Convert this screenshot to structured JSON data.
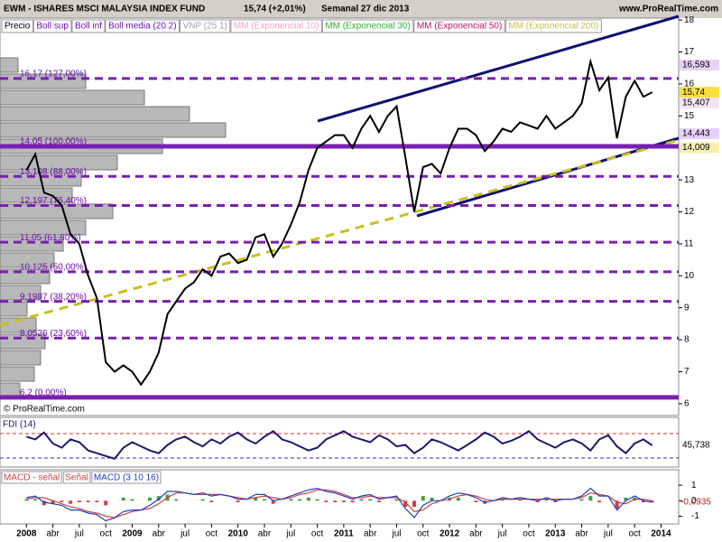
{
  "chart_data": [
    {
      "type": "line",
      "title": "EWM - ISHARES MSCI MALAYSIA INDEX FUND",
      "change": "15,74 (+2,01%)",
      "period": "Semanal  27 dic 2013",
      "source": "www.ProRealTime.com",
      "copyright": "© ProRealTime.com",
      "legend": [
        {
          "name": "Boll sup",
          "color": "#6a0dad"
        },
        {
          "name": "Boll inf",
          "color": "#6a0dad"
        },
        {
          "name": "Boll media (20 2)",
          "color": "#6a0dad"
        },
        {
          "name": "VNP (25 1)",
          "color": "#a0a0a0"
        },
        {
          "name": "MM (Exponencial 10)",
          "color": "#f0a0c0"
        },
        {
          "name": "MM (Exponencial 30)",
          "color": "#30b030"
        },
        {
          "name": "MM (Exponencial 50)",
          "color": "#c01060"
        },
        {
          "name": "MM (Exponencial 200)",
          "color": "#c8c040"
        }
      ],
      "x": [
        "2008-01",
        "2008-02",
        "2008-03",
        "2008-04",
        "2008-05",
        "2008-06",
        "2008-07",
        "2008-08",
        "2008-09",
        "2008-10",
        "2008-11",
        "2008-12",
        "2009-01",
        "2009-02",
        "2009-03",
        "2009-04",
        "2009-05",
        "2009-06",
        "2009-07",
        "2009-08",
        "2009-09",
        "2009-10",
        "2009-11",
        "2009-12",
        "2010-01",
        "2010-02",
        "2010-03",
        "2010-04",
        "2010-05",
        "2010-06",
        "2010-07",
        "2010-08",
        "2010-09",
        "2010-10",
        "2010-11",
        "2010-12",
        "2011-01",
        "2011-02",
        "2011-03",
        "2011-04",
        "2011-05",
        "2011-06",
        "2011-07",
        "2011-08",
        "2011-09",
        "2011-10",
        "2011-11",
        "2011-12",
        "2012-01",
        "2012-02",
        "2012-03",
        "2012-04",
        "2012-05",
        "2012-06",
        "2012-07",
        "2012-08",
        "2012-09",
        "2012-10",
        "2012-11",
        "2012-12",
        "2013-01",
        "2013-02",
        "2013-03",
        "2013-04",
        "2013-05",
        "2013-06",
        "2013-07",
        "2013-08",
        "2013-09",
        "2013-10",
        "2013-11",
        "2013-12"
      ],
      "series": [
        {
          "name": "Precio",
          "color": "#000000",
          "values": [
            13.3,
            13.8,
            12.6,
            12.5,
            12.2,
            11.3,
            11.0,
            10.0,
            9.3,
            7.3,
            7.0,
            7.2,
            7.0,
            6.6,
            7.0,
            7.6,
            8.8,
            9.2,
            9.6,
            9.8,
            10.2,
            10.0,
            10.6,
            10.7,
            10.4,
            10.5,
            11.2,
            11.3,
            10.6,
            11.0,
            11.6,
            12.3,
            13.3,
            14.0,
            14.2,
            14.4,
            14.4,
            14.0,
            14.6,
            15.0,
            14.5,
            15.0,
            15.3,
            13.7,
            12.0,
            13.4,
            13.5,
            13.2,
            14.0,
            14.6,
            14.6,
            14.4,
            13.9,
            14.2,
            14.6,
            14.5,
            14.8,
            14.7,
            14.6,
            15.0,
            14.6,
            14.8,
            15.0,
            15.4,
            16.7,
            15.8,
            16.2,
            14.3,
            15.6,
            16.1,
            15.6,
            15.74
          ]
        }
      ],
      "xlim": [
        "2007-10",
        "2014-03"
      ],
      "xticks": [
        {
          "value": "2008-01",
          "label": "2008"
        },
        {
          "value": "2008-04",
          "label": "abr"
        },
        {
          "value": "2008-07",
          "label": "jul"
        },
        {
          "value": "2008-10",
          "label": "oct"
        },
        {
          "value": "2009-01",
          "label": "2009"
        },
        {
          "value": "2009-04",
          "label": "abr"
        },
        {
          "value": "2009-07",
          "label": "jul"
        },
        {
          "value": "2009-10",
          "label": "oct"
        },
        {
          "value": "2010-01",
          "label": "2010"
        },
        {
          "value": "2010-04",
          "label": "abr"
        },
        {
          "value": "2010-07",
          "label": "jul"
        },
        {
          "value": "2010-10",
          "label": "oct"
        },
        {
          "value": "2011-01",
          "label": "2011"
        },
        {
          "value": "2011-04",
          "label": "abr"
        },
        {
          "value": "2011-07",
          "label": "jul"
        },
        {
          "value": "2011-10",
          "label": "oct"
        },
        {
          "value": "2012-01",
          "label": "2012"
        },
        {
          "value": "2012-04",
          "label": "abr"
        },
        {
          "value": "2012-07",
          "label": "jul"
        },
        {
          "value": "2012-10",
          "label": "oct"
        },
        {
          "value": "2013-01",
          "label": "2013"
        },
        {
          "value": "2013-04",
          "label": "abr"
        },
        {
          "value": "2013-07",
          "label": "jul"
        },
        {
          "value": "2013-10",
          "label": "oct"
        },
        {
          "value": "2014-01",
          "label": "2014"
        }
      ],
      "ylim": [
        5.63,
        18.06
      ],
      "yticks": [
        6,
        7,
        8,
        9,
        10,
        11,
        12,
        13,
        15,
        16,
        17,
        18
      ],
      "levels": [
        {
          "value": 16.17,
          "label": "16,17 (127,00%)"
        },
        {
          "value": 14.05,
          "label": "14,05 (100,00%)",
          "solid": true
        },
        {
          "value": 13.108,
          "label": "13,108 (88,00%)"
        },
        {
          "value": 12.197,
          "label": "12,197 (76,40%)"
        },
        {
          "value": 11.05,
          "label": "11,05 (61,80%)"
        },
        {
          "value": 10.125,
          "label": "10,125 (50,00%)"
        },
        {
          "value": 9.1987,
          "label": "9,1987 (38,20%)"
        },
        {
          "value": 8.0526,
          "label": "8,0526 (23,60%)"
        },
        {
          "value": 6.2,
          "label": "6,2 (0,00%)",
          "solid": true
        }
      ],
      "price_labels": [
        {
          "value": 16.593,
          "label": "16,593",
          "color": "#e8d0f8"
        },
        {
          "value": 15.74,
          "label": "15,74",
          "color": "#f8e040"
        },
        {
          "value": 15.407,
          "label": "15,407",
          "color": "#f4e4f8"
        },
        {
          "value": 14.443,
          "label": "14,443",
          "color": "#e8d0f8"
        },
        {
          "value": 14.009,
          "label": "14,009",
          "color": "#f8f0b0"
        }
      ]
    },
    {
      "type": "line",
      "title": "FDI (14)",
      "ylim": [
        30,
        66
      ],
      "series": [
        {
          "name": "FDI (14)",
          "color": "#1a1a6e",
          "values": [
            52,
            50,
            55,
            47,
            44,
            50,
            48,
            42,
            40,
            38,
            36,
            44,
            48,
            45,
            42,
            40,
            46,
            50,
            52,
            48,
            45,
            50,
            47,
            52,
            55,
            50,
            47,
            52,
            56,
            50,
            48,
            45,
            42,
            44,
            50,
            53,
            56,
            52,
            50,
            48,
            53,
            50,
            45,
            46,
            40,
            44,
            50,
            48,
            45,
            42,
            46,
            50,
            55,
            52,
            47,
            49,
            52,
            56,
            50,
            47,
            44,
            48,
            50,
            47,
            42,
            50,
            53,
            45,
            40,
            47,
            50,
            45.738
          ]
        }
      ],
      "current": {
        "value": 45.738,
        "label": "45,738"
      }
    },
    {
      "type": "macd",
      "ylim": [
        -1.5,
        2.0
      ],
      "yticks": [
        1,
        0,
        -1
      ],
      "series": [
        {
          "name": "MACD - señal",
          "color": "#d04040",
          "values": [
            0.1,
            0.1,
            -0.3,
            -0.2,
            -0.1,
            -0.2,
            -0.1,
            -0.1,
            -0.1,
            -0.3,
            0.0,
            0.2,
            0.1,
            0.0,
            0.2,
            0.3,
            0.4,
            0.1,
            0.0,
            0.0,
            0.1,
            -0.1,
            0.0,
            0.0,
            -0.1,
            0.0,
            0.2,
            0.1,
            -0.2,
            0.0,
            0.1,
            0.1,
            0.2,
            0.1,
            -0.1,
            -0.1,
            -0.1,
            -0.1,
            0.1,
            0.1,
            -0.1,
            0.0,
            0.1,
            -0.4,
            -0.4,
            0.3,
            0.2,
            0.0,
            0.2,
            0.2,
            0.0,
            -0.1,
            -0.2,
            0.0,
            0.1,
            0.0,
            0.1,
            0.0,
            -0.1,
            0.1,
            -0.1,
            0.0,
            0.0,
            0.1,
            0.3,
            -0.1,
            0.0,
            -0.5,
            0.2,
            0.2,
            -0.1,
            -0.1
          ]
        },
        {
          "name": "Señal",
          "color": "#d04040",
          "values": [
            0.1,
            0.2,
            0.2,
            0.0,
            -0.2,
            -0.4,
            -0.5,
            -0.7,
            -0.8,
            -1.0,
            -1.1,
            -0.9,
            -0.7,
            -0.6,
            -0.5,
            -0.2,
            0.2,
            0.5,
            0.5,
            0.4,
            0.4,
            0.4,
            0.4,
            0.3,
            0.2,
            0.1,
            0.2,
            0.3,
            0.2,
            0.1,
            0.2,
            0.4,
            0.5,
            0.7,
            0.7,
            0.6,
            0.4,
            0.2,
            0.2,
            0.3,
            0.2,
            0.2,
            0.2,
            -0.1,
            -0.7,
            -0.6,
            -0.2,
            0.0,
            0.1,
            0.3,
            0.4,
            0.3,
            0.1,
            0.0,
            0.1,
            0.1,
            0.1,
            0.1,
            0.1,
            0.1,
            0.1,
            0.1,
            0.1,
            0.2,
            0.5,
            0.4,
            0.3,
            -0.1,
            -0.2,
            0.1,
            0.1,
            0.0
          ]
        },
        {
          "name": "MACD (3 10 16)",
          "color": "#2040c0",
          "values": [
            0.2,
            0.3,
            -0.1,
            -0.2,
            -0.3,
            -0.6,
            -0.6,
            -0.8,
            -0.9,
            -1.3,
            -1.1,
            -0.7,
            -0.6,
            -0.6,
            -0.3,
            0.1,
            0.6,
            0.6,
            0.5,
            0.4,
            0.5,
            0.3,
            0.4,
            0.3,
            0.1,
            0.1,
            0.4,
            0.4,
            0.0,
            0.1,
            0.3,
            0.5,
            0.7,
            0.8,
            0.6,
            0.5,
            0.3,
            0.1,
            0.3,
            0.4,
            0.1,
            0.2,
            0.3,
            -0.5,
            -1.1,
            -0.3,
            0.0,
            0.0,
            0.3,
            0.5,
            0.4,
            0.2,
            -0.1,
            0.0,
            0.2,
            0.1,
            0.2,
            0.1,
            0.0,
            0.2,
            0.0,
            0.1,
            0.1,
            0.3,
            0.8,
            0.3,
            0.3,
            -0.6,
            0.0,
            0.3,
            0.0,
            -0.1
          ]
        }
      ],
      "current": {
        "value": -0.0935,
        "label": "-0,0935"
      }
    }
  ]
}
